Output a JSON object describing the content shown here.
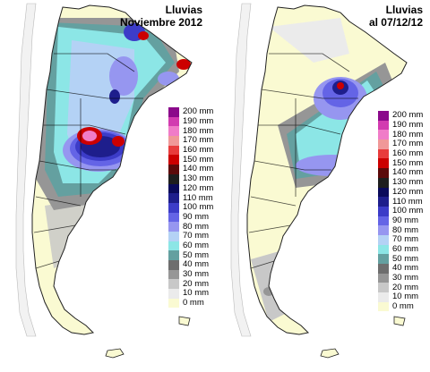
{
  "panels": [
    {
      "title_line1": "Lluvias",
      "title_line2": "Noviembre 2012"
    },
    {
      "title_line1": "Lluvias",
      "title_line2": "al 07/12/12"
    }
  ],
  "legend": [
    {
      "label": "200 mm",
      "color": "#8b0a8b"
    },
    {
      "label": "190 mm",
      "color": "#d23cb0"
    },
    {
      "label": "180 mm",
      "color": "#f07cc8"
    },
    {
      "label": "170 mm",
      "color": "#f09898"
    },
    {
      "label": "160 mm",
      "color": "#e83c3c"
    },
    {
      "label": "150 mm",
      "color": "#cc0000"
    },
    {
      "label": "140 mm",
      "color": "#5c0a0a"
    },
    {
      "label": "130 mm",
      "color": "#1e1e1e"
    },
    {
      "label": "120 mm",
      "color": "#0a0a5a"
    },
    {
      "label": "110 mm",
      "color": "#1e1e8c"
    },
    {
      "label": "100 mm",
      "color": "#3c3cc8"
    },
    {
      "label": "90 mm",
      "color": "#6464e6"
    },
    {
      "label": "80 mm",
      "color": "#9696f0"
    },
    {
      "label": "70 mm",
      "color": "#b4d2f5"
    },
    {
      "label": "60 mm",
      "color": "#8ce6e6"
    },
    {
      "label": "50 mm",
      "color": "#64a0a0"
    },
    {
      "label": "40 mm",
      "color": "#6e6e6e"
    },
    {
      "label": "30 mm",
      "color": "#969696"
    },
    {
      "label": "20 mm",
      "color": "#c8c8c8"
    },
    {
      "label": "10 mm",
      "color": "#ebebeb"
    },
    {
      "label": "0 mm",
      "color": "#fafad2"
    }
  ]
}
